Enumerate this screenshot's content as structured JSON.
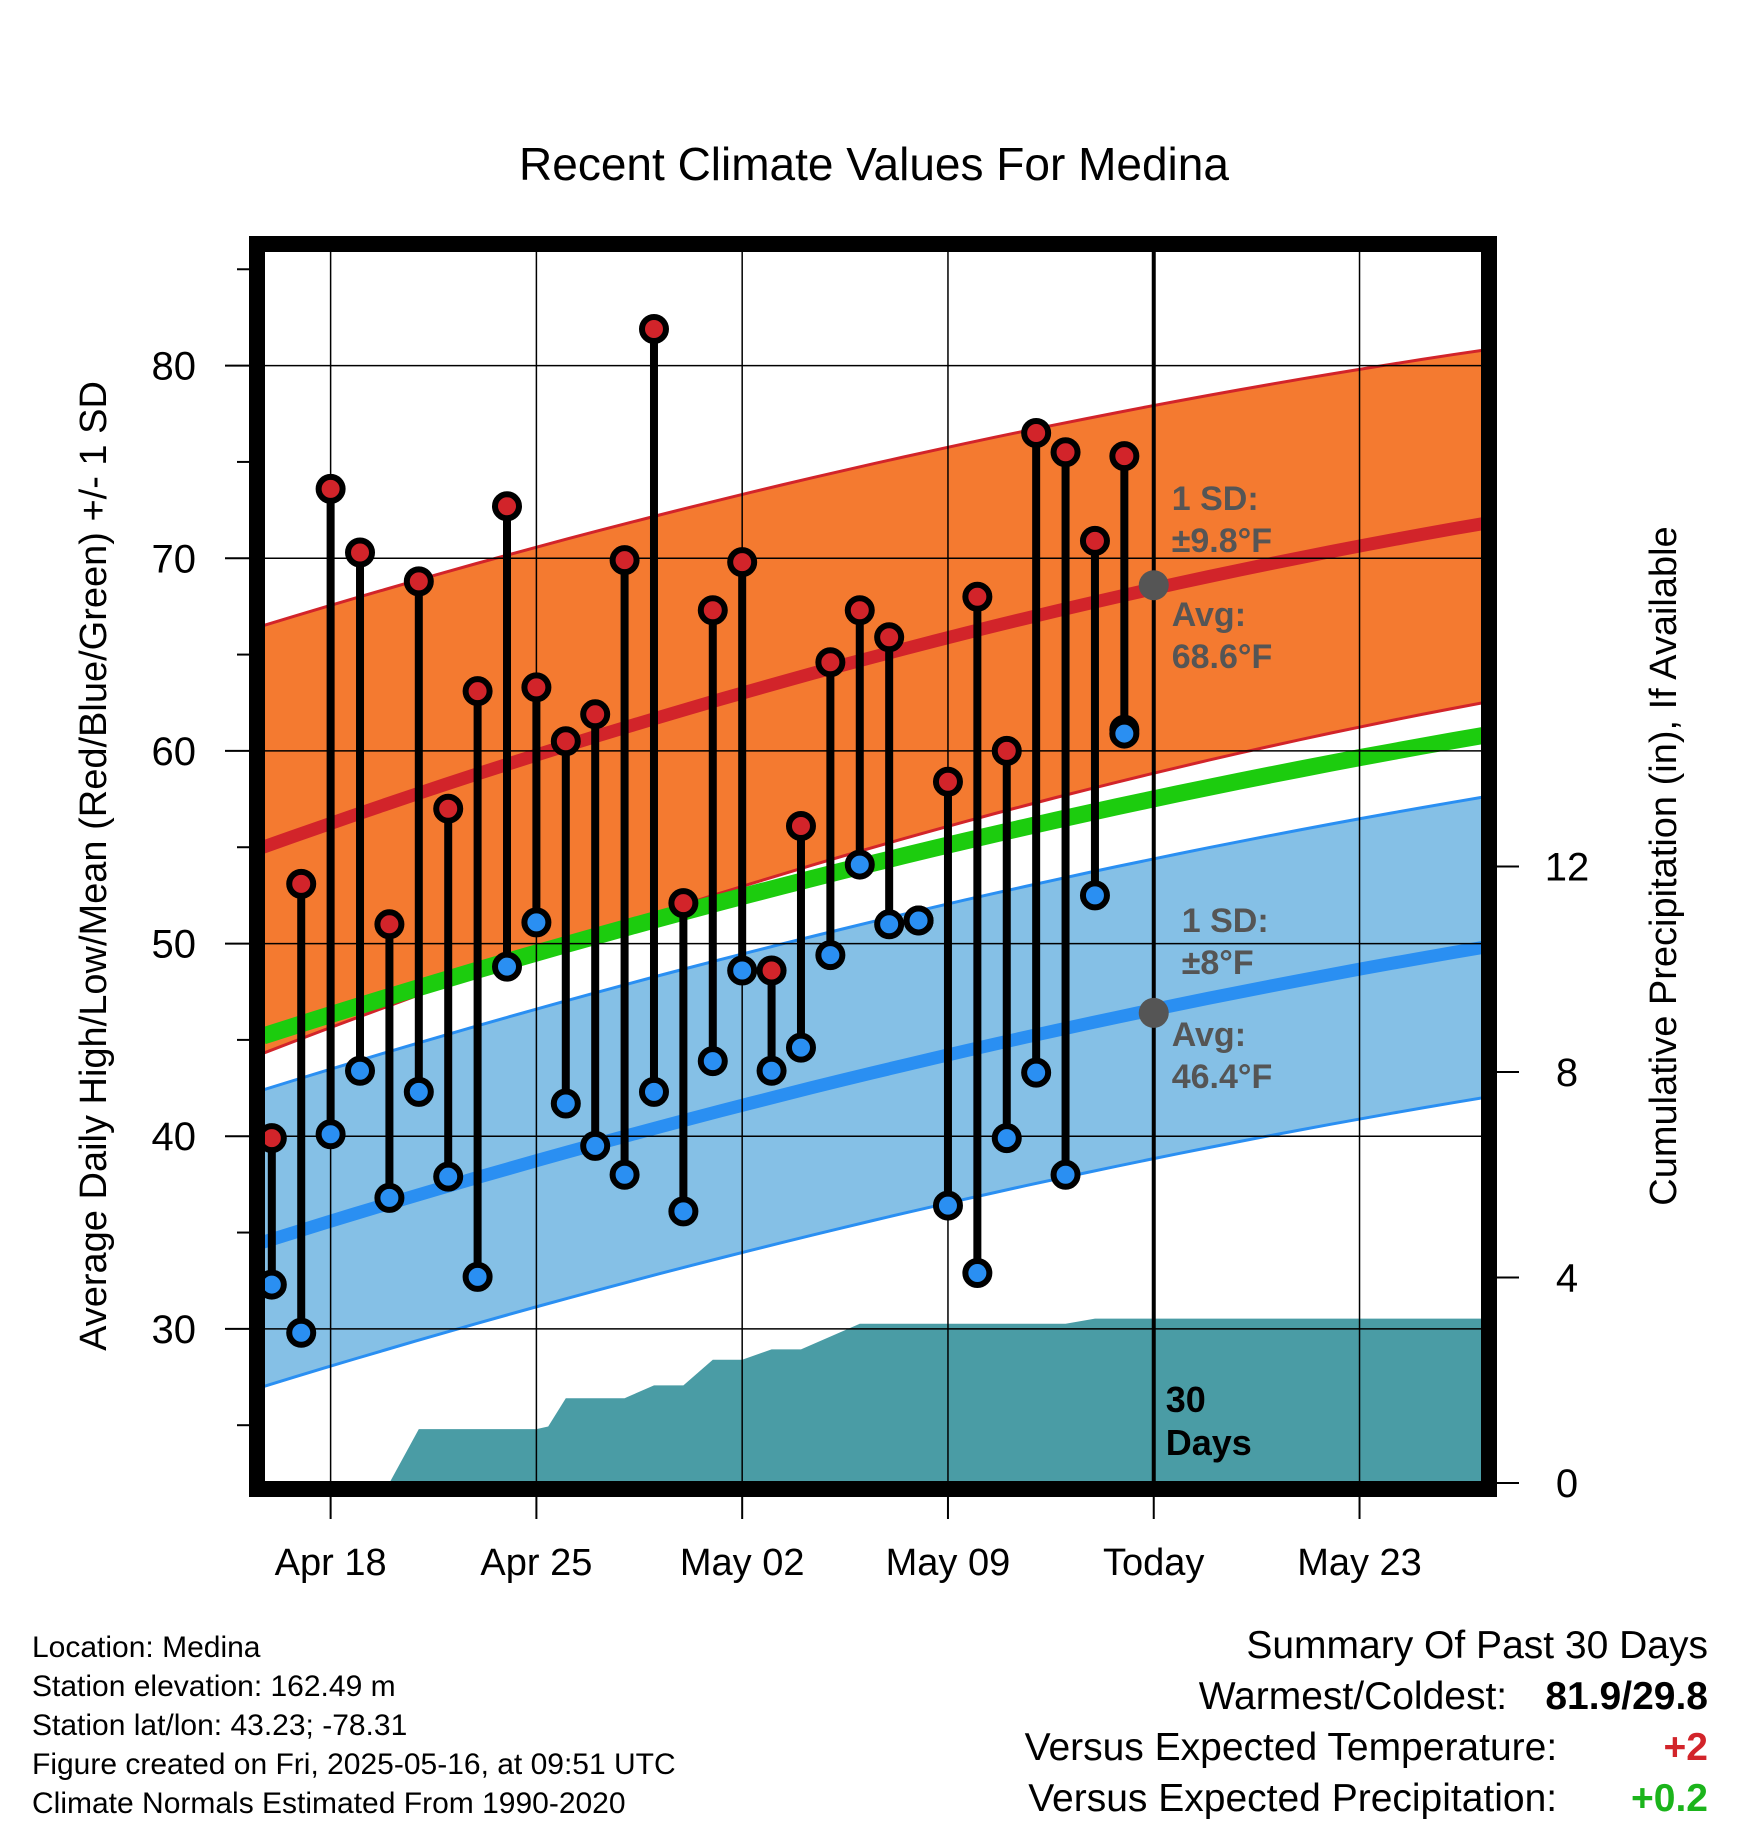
{
  "chart_data": {
    "type": "line",
    "title": "Recent Climate Values For Medina",
    "xlabel": "Day",
    "ylabel": "Average Daily High/Low/Mean (Red/Blue/Green) +/- 1 SD",
    "y2label": "Cumulative Precipitation (in), If Available",
    "ylim": [
      22,
      86
    ],
    "y2lim": [
      0,
      24
    ],
    "yticks": [
      30,
      40,
      50,
      60,
      70,
      80
    ],
    "y2ticks": [
      0,
      4,
      8,
      12
    ],
    "xlim": [
      -0.3,
      41.2
    ],
    "xticks": [
      {
        "day": 2,
        "label": "Apr 18"
      },
      {
        "day": 9,
        "label": "Apr 25"
      },
      {
        "day": 16,
        "label": "May 02"
      },
      {
        "day": 23,
        "label": "May 09"
      },
      {
        "day": 30,
        "label": "Today"
      },
      {
        "day": 37,
        "label": "May 23"
      }
    ],
    "today_day": 30,
    "today_label": [
      "30",
      "Days"
    ],
    "days": [
      0,
      1,
      2,
      3,
      4,
      5,
      6,
      7,
      8,
      9,
      10,
      11,
      12,
      13,
      14,
      15,
      16,
      17,
      18,
      19,
      20,
      21,
      22,
      23,
      24,
      25,
      26,
      27,
      28,
      29
    ],
    "highs": [
      39.9,
      53.1,
      73.6,
      70.3,
      51.0,
      68.8,
      57.0,
      63.1,
      72.7,
      63.3,
      60.5,
      61.9,
      69.9,
      81.9,
      52.1,
      67.3,
      69.8,
      48.6,
      56.1,
      64.6,
      67.3,
      65.9,
      51.2,
      58.4,
      68.0,
      60.0,
      76.5,
      75.5,
      70.9,
      75.3
    ],
    "lows": [
      32.3,
      29.8,
      40.1,
      43.4,
      36.8,
      42.3,
      37.9,
      32.7,
      48.8,
      51.1,
      41.7,
      39.5,
      38.0,
      42.3,
      36.1,
      43.9,
      48.6,
      43.4,
      44.6,
      49.4,
      54.1,
      51.0,
      51.2,
      36.4,
      32.9,
      39.9,
      43.3,
      38.0,
      52.5,
      61.1
    ],
    "lows_extra": [
      {
        "day": 29,
        "value": 60.9
      }
    ],
    "normals": {
      "high_mean": [
        55.0,
        71.8
      ],
      "high_sd_upper": [
        66.5,
        80.8
      ],
      "high_sd_lower": [
        44.3,
        62.5
      ],
      "low_mean": [
        34.5,
        49.8
      ],
      "low_sd_upper": [
        42.4,
        57.6
      ],
      "low_sd_lower": [
        27.0,
        42.0
      ],
      "mean": [
        45.2,
        60.8
      ]
    },
    "today_high_avg": 68.6,
    "today_low_avg": 46.4,
    "high_sd_label": [
      "1 SD:",
      "±9.8°F"
    ],
    "high_avg_label": [
      "Avg:",
      "68.6°F"
    ],
    "low_sd_label": [
      "1 SD:",
      "±8°F"
    ],
    "low_avg_label": [
      "Avg:",
      "46.4°F"
    ],
    "precip_steps": [
      {
        "day": 4,
        "value": 0
      },
      {
        "day": 5,
        "value": 1.05
      },
      {
        "day": 9,
        "value": 1.05
      },
      {
        "day": 9.4,
        "value": 1.1
      },
      {
        "day": 10,
        "value": 1.65
      },
      {
        "day": 12,
        "value": 1.65
      },
      {
        "day": 13,
        "value": 1.9
      },
      {
        "day": 14,
        "value": 1.9
      },
      {
        "day": 15,
        "value": 2.4
      },
      {
        "day": 16,
        "value": 2.4
      },
      {
        "day": 17,
        "value": 2.6
      },
      {
        "day": 18,
        "value": 2.6
      },
      {
        "day": 20,
        "value": 3.1
      },
      {
        "day": 27,
        "value": 3.1
      },
      {
        "day": 28,
        "value": 3.2
      },
      {
        "day": 41.2,
        "value": 3.2
      }
    ],
    "grid": true,
    "legend": "none"
  },
  "colors": {
    "high": "#d2242a",
    "high_band": "#f47a30",
    "low": "#2a8ff2",
    "low_band": "#85c0e6",
    "mean": "#1ccc0e",
    "precip": "#4a9ca5",
    "annotation": "#555555"
  },
  "info": {
    "location": "Location: Medina",
    "elevation": "Station elevation: 162.49 m",
    "latlon": "Station lat/lon: 43.23; -78.31",
    "created": "Figure created on Fri, 2025-05-16, at 09:51 UTC",
    "normals": "Climate Normals Estimated From 1990-2020"
  },
  "summary": {
    "title": "Summary Of Past 30 Days",
    "warmest_label": "Warmest/Coldest:",
    "warmest_value": "81.9/29.8",
    "temp_label": "Versus Expected Temperature:",
    "temp_value": "+2",
    "precip_label": "Versus Expected Precipitation:",
    "precip_value": "+0.2"
  }
}
